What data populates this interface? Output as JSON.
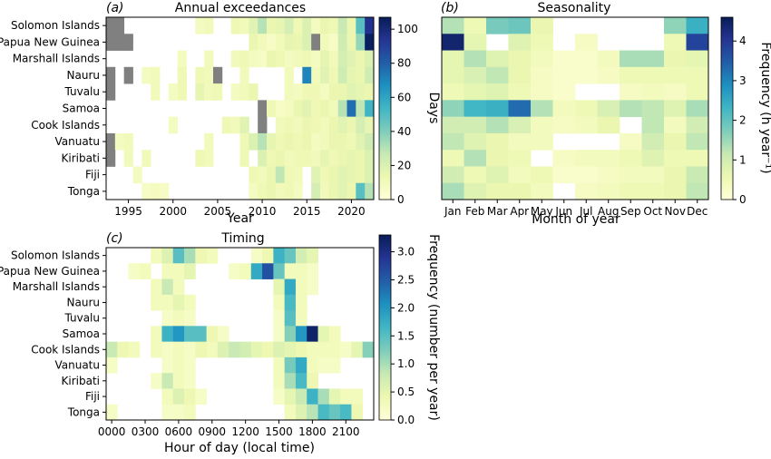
{
  "chart_data": [
    {
      "type": "heatmap",
      "panel_label": "(a)",
      "title": "Annual exceedances",
      "xlabel": "Year",
      "ylabel": "",
      "colorbar_label": "Days",
      "colorbar_ticks": [
        "0",
        "20",
        "40",
        "60",
        "80",
        "100"
      ],
      "vmin": 0,
      "vmax": 107,
      "x_start": 1993,
      "x_end": 2022,
      "x_tick_labels": [
        "1995",
        "2000",
        "2005",
        "2010",
        "2015",
        "2020"
      ],
      "x_tick_values": [
        1995,
        2000,
        2005,
        2010,
        2015,
        2020
      ],
      "rows": [
        "Solomon Islands",
        "Papua New Guinea",
        "Marshall Islands",
        "Nauru",
        "Tuvalu",
        "Samoa",
        "Cook Islands",
        "Vanuatu",
        "Kiribati",
        "Fiji",
        "Tonga"
      ],
      "missing_value": -1,
      "values": [
        [
          -1,
          -1,
          0,
          0,
          0,
          0,
          0,
          0,
          0,
          0,
          8,
          10,
          0,
          0,
          12,
          10,
          18,
          30,
          14,
          16,
          22,
          12,
          20,
          8,
          14,
          12,
          26,
          14,
          48,
          95
        ],
        [
          -1,
          -1,
          -1,
          0,
          0,
          0,
          0,
          0,
          0,
          0,
          0,
          0,
          0,
          0,
          0,
          0,
          14,
          10,
          6,
          10,
          16,
          14,
          20,
          -1,
          10,
          6,
          24,
          14,
          36,
          105
        ],
        [
          0,
          0,
          0,
          0,
          0,
          0,
          0,
          0,
          8,
          0,
          0,
          10,
          0,
          0,
          10,
          12,
          8,
          6,
          14,
          12,
          8,
          10,
          12,
          8,
          16,
          10,
          22,
          18,
          14,
          20
        ],
        [
          -1,
          0,
          -1,
          0,
          8,
          10,
          0,
          0,
          12,
          0,
          12,
          10,
          -1,
          0,
          0,
          10,
          0,
          0,
          0,
          0,
          10,
          0,
          70,
          10,
          18,
          12,
          24,
          16,
          14,
          24
        ],
        [
          -1,
          0,
          0,
          0,
          0,
          10,
          0,
          8,
          12,
          0,
          16,
          10,
          12,
          0,
          8,
          10,
          14,
          0,
          0,
          0,
          10,
          8,
          12,
          12,
          8,
          14,
          14,
          18,
          16,
          14
        ],
        [
          0,
          0,
          0,
          0,
          0,
          0,
          0,
          0,
          0,
          0,
          0,
          0,
          0,
          0,
          0,
          0,
          0,
          -1,
          12,
          6,
          8,
          14,
          18,
          12,
          14,
          10,
          30,
          76,
          28,
          54
        ],
        [
          0,
          0,
          0,
          0,
          0,
          0,
          0,
          8,
          0,
          0,
          0,
          0,
          0,
          12,
          10,
          18,
          0,
          -1,
          0,
          10,
          12,
          10,
          14,
          12,
          10,
          14,
          18,
          14,
          22,
          16
        ],
        [
          -1,
          8,
          10,
          0,
          0,
          0,
          0,
          0,
          0,
          0,
          0,
          10,
          0,
          0,
          0,
          12,
          20,
          30,
          16,
          12,
          14,
          12,
          14,
          8,
          10,
          14,
          14,
          12,
          18,
          24
        ],
        [
          -1,
          0,
          10,
          0,
          10,
          0,
          0,
          0,
          0,
          0,
          12,
          10,
          0,
          0,
          0,
          12,
          0,
          20,
          12,
          14,
          10,
          12,
          12,
          10,
          16,
          12,
          14,
          16,
          14,
          20
        ],
        [
          0,
          0,
          0,
          8,
          0,
          0,
          0,
          0,
          0,
          0,
          0,
          0,
          0,
          0,
          0,
          0,
          12,
          10,
          14,
          28,
          12,
          10,
          0,
          18,
          12,
          14,
          18,
          16,
          14,
          20
        ],
        [
          0,
          0,
          0,
          0,
          6,
          8,
          6,
          0,
          0,
          0,
          0,
          0,
          0,
          0,
          0,
          0,
          8,
          12,
          14,
          10,
          12,
          8,
          0,
          22,
          10,
          14,
          18,
          14,
          48,
          30
        ]
      ]
    },
    {
      "type": "heatmap",
      "panel_label": "(b)",
      "title": "Seasonality",
      "xlabel": "Month of year",
      "ylabel": "",
      "colorbar_label": "Frequency (h year⁻¹)",
      "colorbar_ticks": [
        "0",
        "1",
        "2",
        "3",
        "4"
      ],
      "vmin": 0,
      "vmax": 4.6,
      "x_tick_labels": [
        "Jan",
        "Feb",
        "Mar",
        "Apr",
        "May",
        "Jun",
        "Jul",
        "Aug",
        "Sep",
        "Oct",
        "Nov",
        "Dec"
      ],
      "rows": [
        "Solomon Islands",
        "Papua New Guinea",
        "Marshall Islands",
        "Nauru",
        "Tuvalu",
        "Samoa",
        "Cook Islands",
        "Vanuatu",
        "Kiribati",
        "Fiji",
        "Tonga"
      ],
      "values": [
        [
          1.3,
          0.5,
          1.8,
          1.9,
          0.6,
          0,
          0,
          0,
          0,
          0,
          1.6,
          2.4
        ],
        [
          4.4,
          0.7,
          0,
          0.8,
          0.5,
          0,
          0.3,
          0,
          0,
          0,
          0.5,
          3.8
        ],
        [
          0.7,
          1.3,
          0.8,
          0.6,
          0.4,
          0.2,
          0.2,
          0.4,
          1.4,
          1.4,
          0.6,
          0.7
        ],
        [
          0.7,
          0.9,
          1.2,
          0.6,
          0.3,
          0.2,
          0.2,
          0.3,
          0.5,
          0.5,
          0.5,
          0.5
        ],
        [
          0.5,
          0.7,
          0.8,
          0.5,
          0.3,
          0.2,
          0,
          0,
          0.3,
          0.4,
          0.3,
          0.5
        ],
        [
          1.6,
          2.3,
          2.4,
          3.3,
          1.3,
          0.4,
          0.5,
          0.9,
          1.3,
          1.2,
          0.8,
          1.4
        ],
        [
          1.0,
          1.0,
          1.3,
          0.9,
          0.4,
          0.3,
          0.4,
          0.6,
          0,
          1.2,
          0.4,
          1.0
        ],
        [
          1.2,
          0.8,
          0.6,
          0.4,
          0.4,
          0,
          0,
          0,
          0.3,
          1.0,
          0.6,
          1.2
        ],
        [
          0.5,
          1.3,
          0.6,
          0.5,
          0,
          0.3,
          0.4,
          0.4,
          0.5,
          0.8,
          0.5,
          0.5
        ],
        [
          1.0,
          0.5,
          0.8,
          0.4,
          0.5,
          0.2,
          0.2,
          0.3,
          0.4,
          0.4,
          0.6,
          1.1
        ],
        [
          1.4,
          0.8,
          0.6,
          0.6,
          0.4,
          0,
          0.3,
          0.4,
          0.5,
          0.5,
          0.6,
          1.2
        ]
      ]
    },
    {
      "type": "heatmap",
      "panel_label": "(c)",
      "title": "Timing",
      "xlabel": "Hour of day (local time)",
      "ylabel": "",
      "colorbar_label": "Frequency (number per year)",
      "colorbar_ticks": [
        "0.0",
        "0.5",
        "1.0",
        "1.5",
        "2.0",
        "2.5",
        "3.0"
      ],
      "vmin": 0,
      "vmax": 3.3,
      "x_tick_labels": [
        "0000",
        "0300",
        "0600",
        "0900",
        "1200",
        "1500",
        "1800",
        "2100"
      ],
      "x_tick_hours": [
        0,
        3,
        6,
        9,
        12,
        15,
        18,
        21
      ],
      "rows": [
        "Solomon Islands",
        "Papua New Guinea",
        "Marshall Islands",
        "Nauru",
        "Tuvalu",
        "Samoa",
        "Cook Islands",
        "Vanuatu",
        "Kiribati",
        "Fiji",
        "Tonga"
      ],
      "values": [
        [
          0,
          0,
          0,
          0,
          0.3,
          0.6,
          1.5,
          1.0,
          0.4,
          0.3,
          0,
          0,
          0,
          0.2,
          0.4,
          1.7,
          1.4,
          0.7,
          0.5,
          0,
          0,
          0,
          0,
          0
        ],
        [
          0,
          0,
          0.2,
          0.3,
          0,
          0.3,
          0.3,
          0.5,
          0,
          0,
          0,
          0.2,
          0.3,
          1.8,
          2.6,
          1.4,
          0.3,
          0.3,
          0.2,
          0,
          0,
          0,
          0,
          0
        ],
        [
          0,
          0,
          0,
          0,
          0.3,
          0.8,
          0.3,
          0,
          0,
          0,
          0,
          0,
          0,
          0,
          0,
          0.5,
          1.8,
          0.3,
          0.2,
          0,
          0,
          0,
          0,
          0
        ],
        [
          0,
          0,
          0,
          0,
          0.3,
          0.3,
          0.5,
          0.3,
          0,
          0,
          0,
          0,
          0,
          0,
          0,
          0.3,
          1.6,
          0.3,
          0,
          0,
          0,
          0,
          0,
          0
        ],
        [
          0,
          0,
          0,
          0,
          0,
          0.2,
          0.3,
          0.2,
          0,
          0,
          0,
          0,
          0,
          0,
          0,
          0.2,
          1.5,
          0.3,
          0,
          0,
          0,
          0,
          0,
          0
        ],
        [
          0,
          0,
          0,
          0,
          0.3,
          1.7,
          2.0,
          1.5,
          1.5,
          0.4,
          0.2,
          0,
          0,
          0,
          0,
          0.2,
          1.2,
          2.0,
          3.2,
          0.5,
          0.3,
          0,
          0,
          0
        ],
        [
          0.8,
          0.4,
          0.3,
          0,
          0.3,
          0.2,
          0.3,
          0.2,
          0.4,
          0.3,
          0.6,
          0.8,
          0.7,
          0.5,
          0.4,
          0.6,
          0.5,
          0.4,
          0.3,
          0.3,
          0.3,
          0.2,
          0.5,
          1.2
        ],
        [
          0.2,
          0,
          0,
          0,
          0,
          0.2,
          0.3,
          0.2,
          0,
          0,
          0,
          0,
          0,
          0,
          0,
          0.3,
          1.3,
          1.8,
          0.3,
          0.2,
          0.2,
          0,
          0,
          0
        ],
        [
          0,
          0,
          0,
          0,
          0.2,
          0.8,
          0.3,
          0.2,
          0,
          0,
          0,
          0,
          0,
          0,
          0,
          0.3,
          1.0,
          1.6,
          0.4,
          0,
          0,
          0,
          0,
          0
        ],
        [
          0,
          0,
          0,
          0,
          0,
          0.3,
          0.6,
          0.4,
          0.2,
          0,
          0,
          0,
          0,
          0,
          0,
          0.2,
          0.5,
          0.8,
          1.7,
          1.0,
          0.5,
          0.3,
          0.3,
          0
        ],
        [
          0.2,
          0,
          0,
          0,
          0,
          0.2,
          0.2,
          0.3,
          0,
          0,
          0,
          0,
          0,
          0,
          0,
          0,
          0.3,
          0.6,
          0.9,
          1.6,
          1.4,
          1.6,
          0.4,
          0
        ]
      ]
    }
  ]
}
